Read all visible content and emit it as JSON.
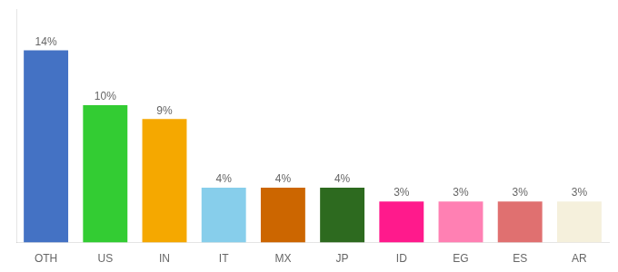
{
  "chart_data": {
    "type": "bar",
    "categories": [
      "OTH",
      "US",
      "IN",
      "IT",
      "MX",
      "JP",
      "ID",
      "EG",
      "ES",
      "AR"
    ],
    "values": [
      14,
      10,
      9,
      4,
      4,
      4,
      3,
      3,
      3,
      3
    ],
    "value_labels": [
      "14%",
      "10%",
      "9%",
      "4%",
      "4%",
      "4%",
      "3%",
      "3%",
      "3%",
      "3%"
    ],
    "data_labels": true,
    "colors": [
      "#4472c4",
      "#33cc33",
      "#f5a800",
      "#87ceeb",
      "#cc6600",
      "#2d6a1f",
      "#ff1a8c",
      "#ff80b3",
      "#e07070",
      "#f5f0dc"
    ],
    "ylim": [
      0,
      17
    ],
    "grid": false,
    "tick_labels": "x"
  }
}
